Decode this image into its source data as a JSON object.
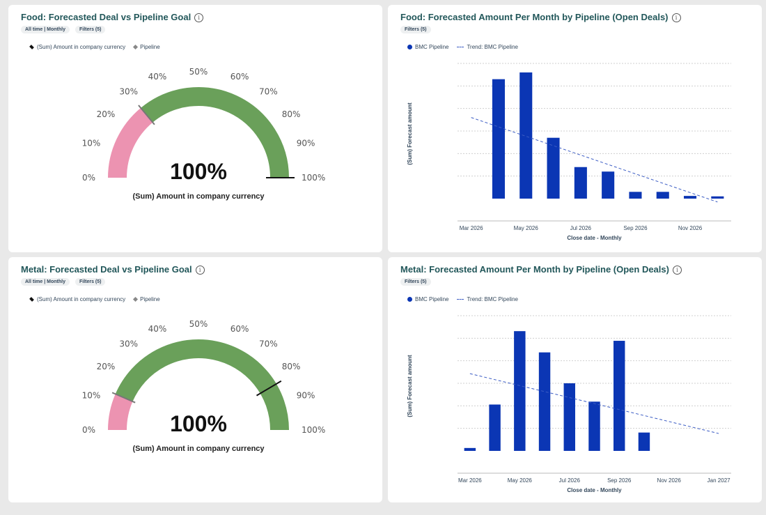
{
  "colors": {
    "pink": "#ec93b1",
    "green": "#6aa05a",
    "blue": "#0b36b4",
    "trend": "#3b5cc4",
    "title": "#22575a"
  },
  "cards": [
    {
      "id": "food-gauge",
      "title": "Food: Forecasted Deal vs Pipeline Goal",
      "chips": [
        "All time | Monthly",
        "Filters (5)"
      ],
      "legend": [
        "(Sum) Amount in company currency",
        "Pipeline"
      ],
      "gauge": {
        "value_label": "100%",
        "caption": "(Sum) Amount in company currency",
        "pipeline_pct": 28,
        "needle_pct": 100,
        "ticks": [
          "0%",
          "10%",
          "20%",
          "30%",
          "40%",
          "50%",
          "60%",
          "70%",
          "80%",
          "90%",
          "100%"
        ]
      }
    },
    {
      "id": "food-bars",
      "title": "Food: Forecasted Amount Per Month by Pipeline (Open Deals)",
      "chips": [
        "Filters (5)"
      ],
      "legend": [
        "BMC Pipeline",
        "Trend: BMC Pipeline"
      ]
    },
    {
      "id": "metal-gauge",
      "title": "Metal: Forecasted Deal vs Pipeline Goal",
      "chips": [
        "All time | Monthly",
        "Filters (5)"
      ],
      "legend": [
        "(Sum) Amount in company currency",
        "Pipeline"
      ],
      "gauge": {
        "value_label": "100%",
        "caption": "(Sum) Amount in company currency",
        "pipeline_pct": 13,
        "needle_pct": 83,
        "ticks": [
          "0%",
          "10%",
          "20%",
          "30%",
          "40%",
          "50%",
          "60%",
          "70%",
          "80%",
          "90%",
          "100%"
        ]
      }
    },
    {
      "id": "metal-bars",
      "title": "Metal: Forecasted Amount Per Month by Pipeline (Open Deals)",
      "chips": [
        "Filters (5)"
      ],
      "legend": [
        "BMC Pipeline",
        "Trend: BMC Pipeline"
      ]
    }
  ],
  "chart_data": [
    {
      "type": "bar",
      "title": "Food: Forecasted Amount Per Month by Pipeline (Open Deals)",
      "xlabel": "Close date - Monthly",
      "ylabel": "(Sum) Forecast amount",
      "categories": [
        "Mar 2026",
        "Apr 2026",
        "May 2026",
        "Jun 2026",
        "Jul 2026",
        "Aug 2026",
        "Sep 2026",
        "Oct 2026",
        "Nov 2026",
        "Dec 2026"
      ],
      "x_tick_labels": [
        "Mar 2026",
        "May 2026",
        "Jul 2026",
        "Sep 2026",
        "Nov 2026"
      ],
      "series": [
        {
          "name": "BMC Pipeline",
          "values": [
            0,
            5.3,
            5.6,
            2.7,
            1.4,
            1.2,
            0.3,
            0.3,
            0.12,
            0.1
          ]
        }
      ],
      "trend": {
        "name": "Trend: BMC Pipeline",
        "start": 3.6,
        "end": -0.15
      },
      "ylim": [
        0,
        6
      ],
      "grid": true,
      "legend": "top-left"
    },
    {
      "type": "bar",
      "title": "Metal: Forecasted Amount Per Month by Pipeline (Open Deals)",
      "xlabel": "Close date - Monthly",
      "ylabel": "(Sum) Forecast amount",
      "categories": [
        "Mar 2026",
        "Apr 2026",
        "May 2026",
        "Jun 2026",
        "Jul 2026",
        "Aug 2026",
        "Sep 2026",
        "Oct 2026",
        "Nov 2026",
        "Dec 2026",
        "Jan 2027"
      ],
      "x_tick_labels": [
        "Mar 2026",
        "May 2026",
        "Jul 2026",
        "Sep 2026",
        "Nov 2026",
        "Jan 2027"
      ],
      "series": [
        {
          "name": "BMC Pipeline",
          "values": [
            0.15,
            2.4,
            6.2,
            5.1,
            3.5,
            2.55,
            5.7,
            0.95,
            0,
            0,
            0
          ]
        }
      ],
      "trend": {
        "name": "Trend: BMC Pipeline",
        "start": 4.0,
        "end": 0.9
      },
      "ylim": [
        0,
        7
      ],
      "grid": true,
      "legend": "top-left"
    }
  ]
}
